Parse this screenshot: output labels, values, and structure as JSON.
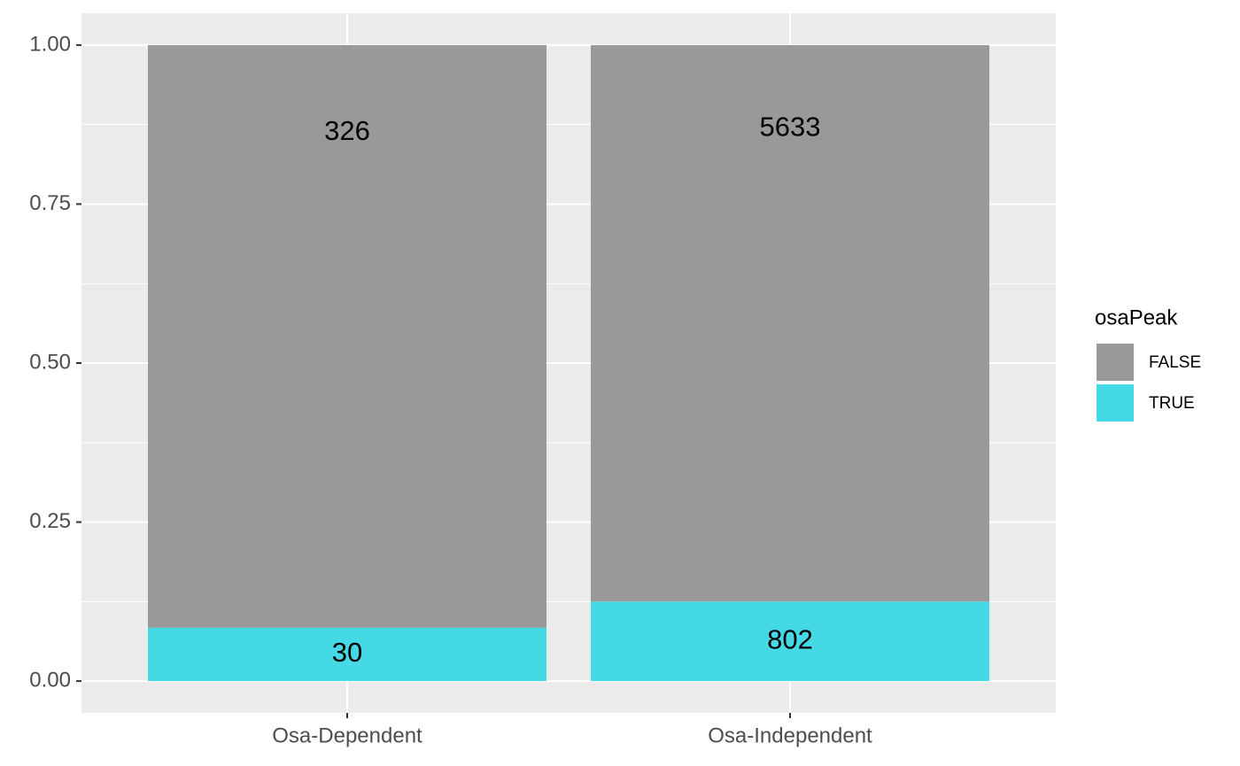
{
  "chart_data": {
    "type": "bar",
    "stacked": true,
    "categories": [
      "Osa-Dependent",
      "Osa-Independent"
    ],
    "series": [
      {
        "name": "FALSE",
        "color": "#999999",
        "values": [
          0.916,
          0.875
        ],
        "counts": [
          "326",
          "5633"
        ]
      },
      {
        "name": "TRUE",
        "color": "#45d9e5",
        "values": [
          0.084,
          0.125
        ],
        "counts": [
          "30",
          "802"
        ]
      }
    ],
    "legend_title": "osaPeak",
    "ylim": [
      -0.05,
      1.05
    ],
    "yticks": [
      {
        "value": 0,
        "label": "0.00"
      },
      {
        "value": 0.25,
        "label": "0.25"
      },
      {
        "value": 0.5,
        "label": "0.50"
      },
      {
        "value": 0.75,
        "label": "0.75"
      },
      {
        "value": 1,
        "label": "1.00"
      }
    ],
    "grid": true,
    "legend": "right"
  }
}
